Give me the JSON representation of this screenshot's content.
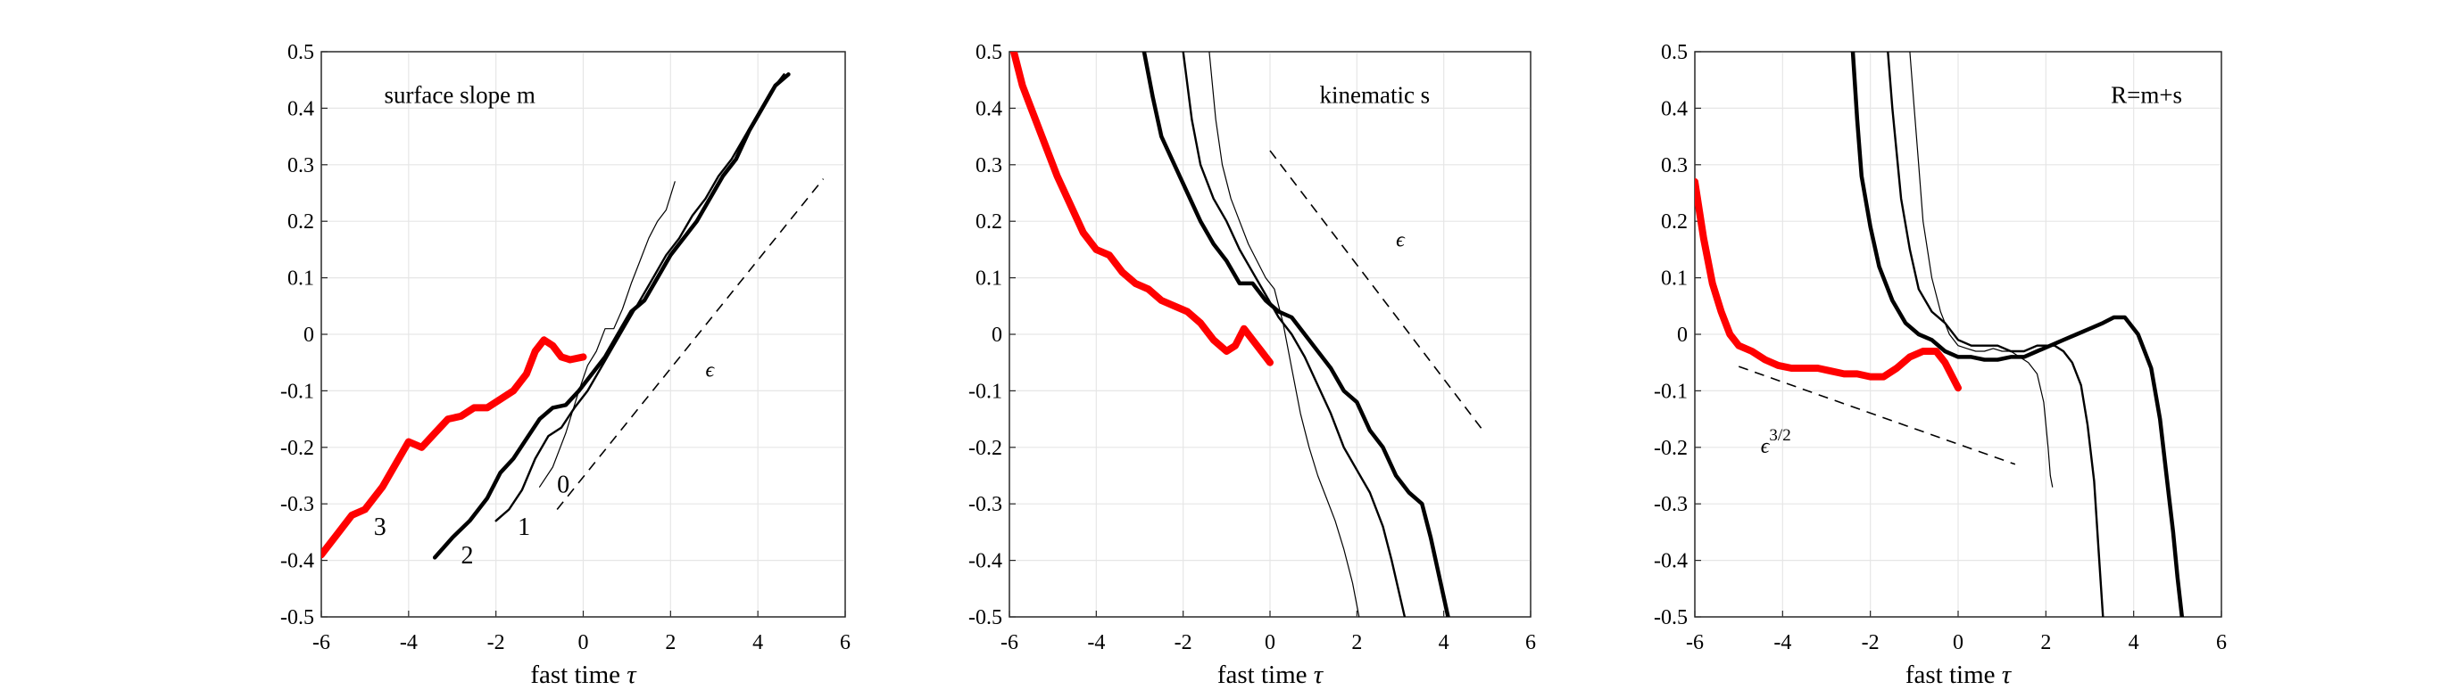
{
  "figure": {
    "panels": [
      {
        "id": "slope",
        "title": "surface slope m",
        "xlabel": "fast time τ",
        "xlim": [
          -6,
          6
        ],
        "ylim": [
          -0.5,
          0.5
        ],
        "xticks": [
          "-6",
          "-4",
          "-2",
          "0",
          "2",
          "4",
          "6"
        ],
        "yticks": [
          "0.5",
          "0.4",
          "0.3",
          "0.2",
          "0.1",
          "0",
          "-0.1",
          "-0.2",
          "-0.3",
          "-0.4",
          "-0.5"
        ],
        "curve_labels": [
          {
            "text": "3",
            "x": -4.8,
            "y": -0.355
          },
          {
            "text": "2",
            "x": -2.8,
            "y": -0.405
          },
          {
            "text": "1",
            "x": -1.5,
            "y": -0.355
          },
          {
            "text": "0",
            "x": -0.6,
            "y": -0.28
          }
        ],
        "slope_label": {
          "base": "ϵ",
          "sup": "",
          "x": 2.8,
          "y": -0.075
        }
      },
      {
        "id": "kinematic",
        "title": "kinematic s",
        "xlabel": "fast time τ",
        "xlim": [
          -6,
          6
        ],
        "ylim": [
          -0.5,
          0.5
        ],
        "xticks": [
          "-6",
          "-4",
          "-2",
          "0",
          "2",
          "4",
          "6"
        ],
        "yticks": [
          "0.5",
          "0.4",
          "0.3",
          "0.2",
          "0.1",
          "0",
          "-0.1",
          "-0.2",
          "-0.3",
          "-0.4",
          "-0.5"
        ],
        "slope_label": {
          "base": "ϵ",
          "sup": "",
          "x": 2.9,
          "y": 0.155
        }
      },
      {
        "id": "sum",
        "title": "R=m+s",
        "xlabel": "fast time τ",
        "xlim": [
          -6,
          6
        ],
        "ylim": [
          -0.5,
          0.5
        ],
        "xticks": [
          "-6",
          "-4",
          "-2",
          "0",
          "2",
          "4",
          "6"
        ],
        "yticks": [
          "0.5",
          "0.4",
          "0.3",
          "0.2",
          "0.1",
          "0",
          "-0.1",
          "-0.2",
          "-0.3",
          "-0.4",
          "-0.5"
        ],
        "slope_label": {
          "base": "ϵ",
          "sup": "3/2",
          "x": -4.5,
          "y": -0.21
        }
      }
    ]
  },
  "chart_data": [
    {
      "type": "line",
      "title": "surface slope m",
      "xlabel": "fast time τ",
      "ylabel": "",
      "xlim": [
        -6,
        6
      ],
      "ylim": [
        -0.5,
        0.5
      ],
      "grid": true,
      "series": [
        {
          "name": "3",
          "color": "#ff0000",
          "width": "heavy",
          "x": [
            -6.0,
            -5.6,
            -5.3,
            -5.0,
            -4.6,
            -4.3,
            -4.0,
            -3.7,
            -3.4,
            -3.1,
            -2.8,
            -2.5,
            -2.2,
            -1.9,
            -1.6,
            -1.3,
            -1.1,
            -0.9,
            -0.7,
            -0.5,
            -0.3,
            0.0
          ],
          "y": [
            -0.39,
            -0.35,
            -0.32,
            -0.31,
            -0.27,
            -0.23,
            -0.19,
            -0.2,
            -0.175,
            -0.15,
            -0.145,
            -0.13,
            -0.13,
            -0.115,
            -0.1,
            -0.07,
            -0.03,
            -0.01,
            -0.02,
            -0.04,
            -0.045,
            -0.04
          ]
        },
        {
          "name": "2",
          "color": "#000000",
          "width": "thick",
          "x": [
            -3.4,
            -3.0,
            -2.6,
            -2.2,
            -1.9,
            -1.6,
            -1.3,
            -1.0,
            -0.7,
            -0.4,
            -0.1,
            0.2,
            0.5,
            0.8,
            1.1,
            1.4,
            1.7,
            2.0,
            2.3,
            2.6,
            2.9,
            3.2,
            3.5,
            3.8,
            4.1,
            4.4,
            4.7
          ],
          "y": [
            -0.395,
            -0.36,
            -0.33,
            -0.29,
            -0.245,
            -0.22,
            -0.185,
            -0.15,
            -0.13,
            -0.125,
            -0.1,
            -0.07,
            -0.04,
            0.0,
            0.04,
            0.06,
            0.1,
            0.14,
            0.17,
            0.2,
            0.24,
            0.28,
            0.31,
            0.36,
            0.4,
            0.44,
            0.46
          ]
        },
        {
          "name": "1",
          "color": "#000000",
          "width": "medium",
          "x": [
            -2.0,
            -1.7,
            -1.4,
            -1.1,
            -0.8,
            -0.5,
            -0.2,
            0.1,
            0.4,
            0.7,
            1.0,
            1.3,
            1.6,
            1.9,
            2.2,
            2.5,
            2.8,
            3.1,
            3.4,
            3.7,
            4.0,
            4.3,
            4.6
          ],
          "y": [
            -0.33,
            -0.31,
            -0.275,
            -0.22,
            -0.18,
            -0.165,
            -0.13,
            -0.1,
            -0.06,
            -0.02,
            0.02,
            0.06,
            0.1,
            0.14,
            0.17,
            0.21,
            0.24,
            0.28,
            0.31,
            0.35,
            0.39,
            0.43,
            0.46
          ]
        },
        {
          "name": "0",
          "color": "#000000",
          "width": "thin",
          "x": [
            -1.0,
            -0.7,
            -0.4,
            -0.1,
            0.1,
            0.3,
            0.5,
            0.7,
            0.9,
            1.1,
            1.3,
            1.5,
            1.7,
            1.9,
            2.1
          ],
          "y": [
            -0.27,
            -0.235,
            -0.175,
            -0.1,
            -0.055,
            -0.03,
            0.01,
            0.01,
            0.045,
            0.09,
            0.13,
            0.17,
            0.2,
            0.22,
            0.27
          ]
        },
        {
          "name": "ϵ",
          "color": "#000000",
          "width": "dashed",
          "x": [
            -0.6,
            5.5
          ],
          "y": [
            -0.31,
            0.275
          ]
        }
      ]
    },
    {
      "type": "line",
      "title": "kinematic s",
      "xlabel": "fast time τ",
      "ylabel": "",
      "xlim": [
        -6,
        6
      ],
      "ylim": [
        -0.5,
        0.5
      ],
      "grid": true,
      "series": [
        {
          "name": "3",
          "color": "#ff0000",
          "width": "heavy",
          "x": [
            -5.9,
            -5.7,
            -5.5,
            -5.2,
            -4.9,
            -4.6,
            -4.3,
            -4.0,
            -3.7,
            -3.4,
            -3.1,
            -2.8,
            -2.5,
            -2.2,
            -1.9,
            -1.6,
            -1.3,
            -1.0,
            -0.8,
            -0.6,
            -0.4,
            -0.2,
            0.0
          ],
          "y": [
            0.5,
            0.44,
            0.4,
            0.34,
            0.28,
            0.23,
            0.18,
            0.15,
            0.14,
            0.11,
            0.09,
            0.08,
            0.06,
            0.05,
            0.04,
            0.02,
            -0.01,
            -0.03,
            -0.02,
            0.01,
            -0.01,
            -0.03,
            -0.05
          ]
        },
        {
          "name": "2",
          "color": "#000000",
          "width": "thick",
          "x": [
            -2.9,
            -2.7,
            -2.5,
            -2.2,
            -1.9,
            -1.6,
            -1.3,
            -1.0,
            -0.7,
            -0.4,
            -0.1,
            0.2,
            0.5,
            0.8,
            1.1,
            1.4,
            1.7,
            2.0,
            2.3,
            2.6,
            2.9,
            3.2,
            3.5,
            3.7,
            3.9,
            4.1
          ],
          "y": [
            0.5,
            0.42,
            0.35,
            0.3,
            0.25,
            0.2,
            0.16,
            0.13,
            0.09,
            0.09,
            0.06,
            0.04,
            0.03,
            0.0,
            -0.03,
            -0.06,
            -0.1,
            -0.12,
            -0.17,
            -0.2,
            -0.25,
            -0.28,
            -0.3,
            -0.36,
            -0.43,
            -0.5
          ]
        },
        {
          "name": "1",
          "color": "#000000",
          "width": "medium",
          "x": [
            -2.0,
            -1.8,
            -1.6,
            -1.3,
            -1.0,
            -0.7,
            -0.4,
            -0.1,
            0.2,
            0.5,
            0.8,
            1.1,
            1.4,
            1.7,
            2.0,
            2.3,
            2.6,
            2.8,
            2.95,
            3.1
          ],
          "y": [
            0.5,
            0.38,
            0.3,
            0.24,
            0.2,
            0.15,
            0.11,
            0.07,
            0.03,
            0.0,
            -0.04,
            -0.09,
            -0.14,
            -0.2,
            -0.24,
            -0.28,
            -0.34,
            -0.4,
            -0.45,
            -0.5
          ]
        },
        {
          "name": "0",
          "color": "#000000",
          "width": "thin",
          "x": [
            -1.4,
            -1.25,
            -1.1,
            -0.9,
            -0.7,
            -0.5,
            -0.3,
            -0.1,
            0.1,
            0.3,
            0.5,
            0.7,
            0.9,
            1.1,
            1.3,
            1.5,
            1.7,
            1.9,
            2.05
          ],
          "y": [
            0.5,
            0.38,
            0.3,
            0.24,
            0.2,
            0.16,
            0.13,
            0.1,
            0.08,
            0.02,
            -0.06,
            -0.14,
            -0.2,
            -0.25,
            -0.29,
            -0.33,
            -0.38,
            -0.44,
            -0.5
          ]
        },
        {
          "name": "ϵ",
          "color": "#000000",
          "width": "dashed",
          "x": [
            0.0,
            4.9
          ],
          "y": [
            0.325,
            -0.17
          ]
        }
      ]
    },
    {
      "type": "line",
      "title": "R=m+s",
      "xlabel": "fast time τ",
      "ylabel": "",
      "xlim": [
        -6,
        6
      ],
      "ylim": [
        -0.5,
        0.5
      ],
      "grid": true,
      "series": [
        {
          "name": "3",
          "color": "#ff0000",
          "width": "heavy",
          "x": [
            -6.0,
            -5.8,
            -5.6,
            -5.4,
            -5.2,
            -5.0,
            -4.7,
            -4.4,
            -4.1,
            -3.8,
            -3.5,
            -3.2,
            -2.9,
            -2.6,
            -2.3,
            -2.0,
            -1.7,
            -1.4,
            -1.1,
            -0.8,
            -0.5,
            -0.3,
            -0.1,
            0.0
          ],
          "y": [
            0.27,
            0.17,
            0.09,
            0.04,
            0.0,
            -0.02,
            -0.03,
            -0.045,
            -0.055,
            -0.06,
            -0.06,
            -0.06,
            -0.065,
            -0.07,
            -0.07,
            -0.075,
            -0.075,
            -0.06,
            -0.04,
            -0.03,
            -0.03,
            -0.05,
            -0.08,
            -0.095
          ]
        },
        {
          "name": "2",
          "color": "#000000",
          "width": "thick",
          "x": [
            -2.4,
            -2.3,
            -2.2,
            -2.0,
            -1.8,
            -1.5,
            -1.2,
            -0.9,
            -0.6,
            -0.3,
            0.0,
            0.3,
            0.6,
            0.9,
            1.2,
            1.5,
            1.8,
            2.1,
            2.4,
            2.7,
            3.0,
            3.3,
            3.55,
            3.8,
            4.1,
            4.4,
            4.6,
            4.75,
            4.9,
            5.0,
            5.1
          ],
          "y": [
            0.5,
            0.38,
            0.28,
            0.19,
            0.12,
            0.06,
            0.02,
            0.0,
            -0.01,
            -0.03,
            -0.04,
            -0.04,
            -0.045,
            -0.045,
            -0.04,
            -0.04,
            -0.03,
            -0.02,
            -0.01,
            0.0,
            0.01,
            0.02,
            0.03,
            0.03,
            0.0,
            -0.06,
            -0.15,
            -0.25,
            -0.35,
            -0.43,
            -0.5
          ]
        },
        {
          "name": "1",
          "color": "#000000",
          "width": "medium",
          "x": [
            -1.6,
            -1.5,
            -1.4,
            -1.3,
            -1.1,
            -0.9,
            -0.6,
            -0.3,
            0.0,
            0.3,
            0.6,
            0.9,
            1.2,
            1.5,
            1.8,
            2.0,
            2.2,
            2.4,
            2.6,
            2.8,
            2.95,
            3.1,
            3.2,
            3.3
          ],
          "y": [
            0.5,
            0.4,
            0.32,
            0.24,
            0.15,
            0.08,
            0.04,
            0.02,
            -0.01,
            -0.02,
            -0.02,
            -0.02,
            -0.03,
            -0.03,
            -0.02,
            -0.02,
            -0.02,
            -0.03,
            -0.05,
            -0.09,
            -0.16,
            -0.26,
            -0.38,
            -0.5
          ]
        },
        {
          "name": "0",
          "color": "#000000",
          "width": "thin",
          "x": [
            -1.1,
            -1.0,
            -0.9,
            -0.8,
            -0.6,
            -0.4,
            -0.2,
            0.0,
            0.2,
            0.4,
            0.6,
            0.8,
            1.0,
            1.2,
            1.4,
            1.6,
            1.8,
            1.95,
            2.05,
            2.1,
            2.15
          ],
          "y": [
            0.5,
            0.4,
            0.3,
            0.2,
            0.1,
            0.04,
            0.0,
            -0.02,
            -0.025,
            -0.03,
            -0.03,
            -0.025,
            -0.03,
            -0.03,
            -0.04,
            -0.05,
            -0.07,
            -0.12,
            -0.2,
            -0.25,
            -0.27
          ]
        },
        {
          "name": "ϵ^{3/2}",
          "color": "#000000",
          "width": "dashed",
          "x": [
            -5.0,
            1.3
          ],
          "y": [
            -0.057,
            -0.23
          ]
        }
      ]
    }
  ]
}
